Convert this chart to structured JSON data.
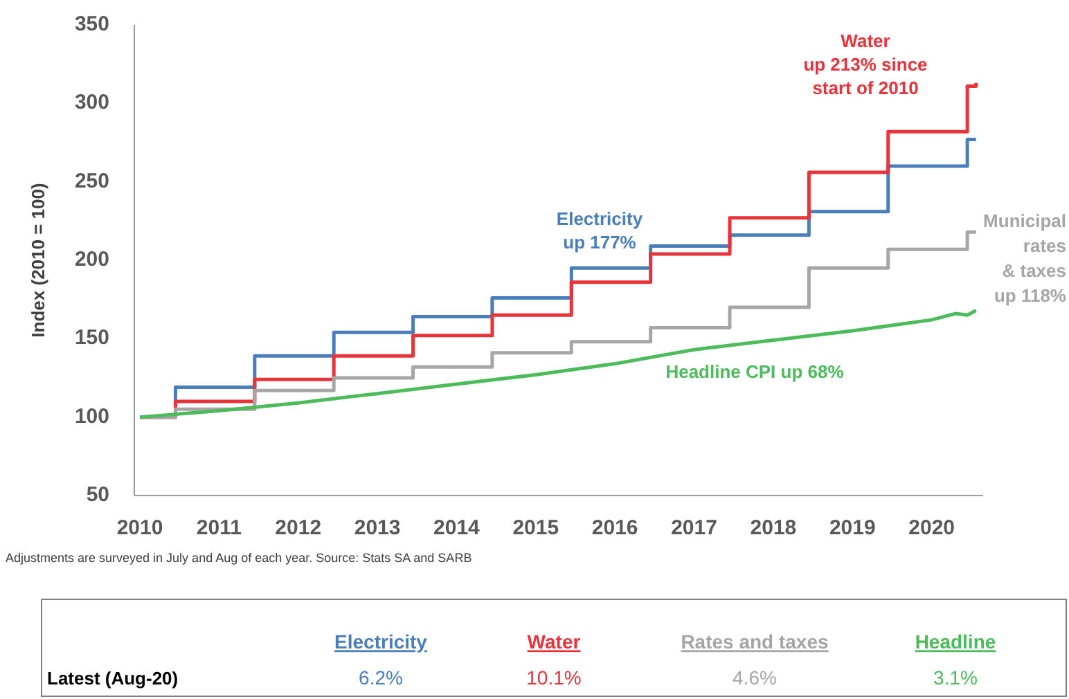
{
  "chart_data": {
    "type": "step",
    "ylabel": "Index (2010 = 100)",
    "xlim": [
      2009.93,
      2020.65
    ],
    "xticks": [
      2010,
      2011,
      2012,
      2013,
      2014,
      2015,
      2016,
      2017,
      2018,
      2019,
      2020
    ],
    "ylim": [
      50,
      350
    ],
    "yticks": [
      50,
      100,
      150,
      200,
      250,
      300,
      350
    ],
    "grid": false,
    "series": [
      {
        "color": "#4a7ebb",
        "x": [
          2010,
          2010.45,
          2011.45,
          2012.45,
          2013.45,
          2014.45,
          2015.45,
          2016.45,
          2017.45,
          2018.45,
          2019.45,
          2020.45,
          2020.56
        ],
        "values": [
          100,
          119,
          139,
          154,
          164,
          176,
          195,
          209,
          216,
          231,
          260,
          277,
          277
        ]
      },
      {
        "color": "#e8333b",
        "x": [
          2010,
          2010.45,
          2011.45,
          2012.45,
          2013.45,
          2014.45,
          2015.45,
          2016.45,
          2017.45,
          2018.45,
          2019.45,
          2020.45,
          2020.56
        ],
        "values": [
          100,
          110,
          124,
          139,
          152,
          165,
          186,
          204,
          227,
          256,
          282,
          311,
          313
        ]
      },
      {
        "color": "#a6a6a6",
        "x": [
          2010,
          2010.45,
          2011.45,
          2012.45,
          2013.45,
          2014.45,
          2015.45,
          2016.45,
          2017.45,
          2018.45,
          2019.45,
          2020.45,
          2020.56
        ],
        "values": [
          100,
          105,
          117,
          125,
          132,
          141,
          148,
          157,
          170,
          195,
          207,
          218,
          218
        ]
      },
      {
        "color": "#4cbb5a",
        "type": "line",
        "x": [
          2010,
          2011,
          2012,
          2013,
          2014,
          2015,
          2016,
          2017,
          2018,
          2019,
          2020,
          2020.3,
          2020.45,
          2020.56
        ],
        "values": [
          100,
          104,
          109,
          115,
          121,
          127,
          134,
          143,
          149,
          155,
          162,
          166,
          165,
          168
        ]
      }
    ],
    "annotations": [
      "Water\nup 213% since\nstart of 2010",
      "Electricity\nup 177%",
      "Headline CPI up 68%",
      "Adjustments are surveyed in July and Aug of each year. Source: Stats SA and SARB",
      "Municipal\nrates\n& taxes\nup 118%",
      "Latest (Aug-20)",
      "Electricity",
      "Water",
      "Rates and taxes",
      "Headline",
      "6.2%",
      "10.1%",
      "4.6%",
      "3.1%"
    ]
  }
}
